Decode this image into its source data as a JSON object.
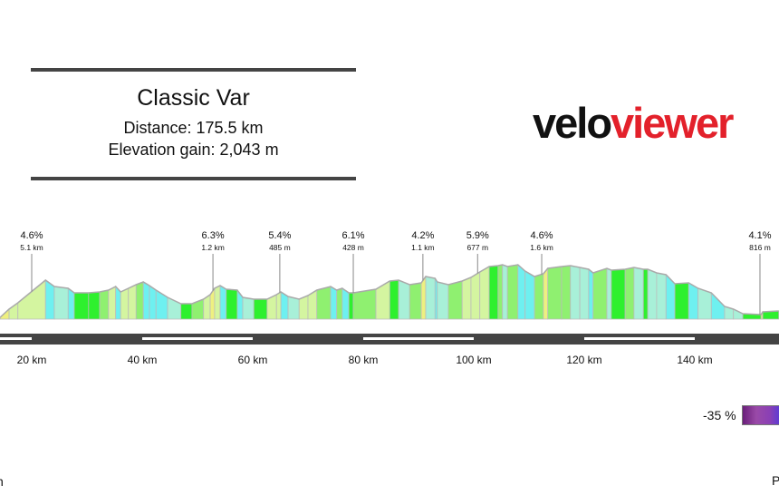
{
  "header": {
    "title": "Classic Var",
    "distance": "Distance: 175.5 km",
    "elevation_gain": "Elevation gain: 2,043 m"
  },
  "logo": {
    "part1": "velo",
    "part2": "viewer",
    "colors": {
      "velo": "#111111",
      "viewer": "#e3212b"
    }
  },
  "legend": {
    "min_label": "-35 %",
    "bottom_left_text": "n",
    "bottom_right_text": "P"
  },
  "chart_data": {
    "type": "area",
    "title": "",
    "xlabel": "",
    "ylabel": "",
    "x_ticks": [
      "20 km",
      "40 km",
      "60 km",
      "80 km",
      "100 km",
      "120 km",
      "140 km"
    ],
    "x_tick_values": [
      20,
      40,
      60,
      80,
      100,
      120,
      140
    ],
    "xlim": [
      14.3,
      155.2
    ],
    "grid": false,
    "profile": {
      "km": [
        14.3,
        15.9,
        17.5,
        22.5,
        24.1,
        26.6,
        27.7,
        30.3,
        32.3,
        33.9,
        35.2,
        36.1,
        37.5,
        38.9,
        40.2,
        41.3,
        42.5,
        44.6,
        47.0,
        49.0,
        51.1,
        52.3,
        53.1,
        54.1,
        55.2,
        57.2,
        58.2,
        60.2,
        62.6,
        64.3,
        65.1,
        66.4,
        68.4,
        70.0,
        71.6,
        74.1,
        75.2,
        76.2,
        77.4,
        78.2,
        82.3,
        84.8,
        86.4,
        88.4,
        90.5,
        91.3,
        93.0,
        93.4,
        95.4,
        97.9,
        99.5,
        101.1,
        102.8,
        104.4,
        105.2,
        106.1,
        108.0,
        109.3,
        111.0,
        112.6,
        113.4,
        115.9,
        117.5,
        119.2,
        120.8,
        121.6,
        124.1,
        124.9,
        127.4,
        129.0,
        130.7,
        131.5,
        133.1,
        134.8,
        136.4,
        138.9,
        140.6,
        143.0,
        145.4,
        147.0,
        148.7,
        152.0,
        152.3,
        155.2
      ],
      "elevation": [
        16,
        88,
        144,
        344,
        288,
        272,
        232,
        232,
        240,
        256,
        288,
        240,
        272,
        304,
        328,
        296,
        256,
        192,
        136,
        136,
        176,
        216,
        272,
        296,
        264,
        256,
        192,
        176,
        176,
        216,
        240,
        200,
        176,
        208,
        256,
        288,
        256,
        272,
        232,
        232,
        264,
        336,
        344,
        304,
        320,
        376,
        360,
        328,
        304,
        336,
        368,
        416,
        464,
        472,
        480,
        464,
        480,
        424,
        376,
        400,
        448,
        464,
        472,
        456,
        440,
        408,
        448,
        432,
        440,
        456,
        440,
        440,
        408,
        392,
        312,
        320,
        272,
        232,
        112,
        88,
        48,
        40,
        64,
        72
      ]
    },
    "climbs": [
      {
        "km": 20.0,
        "gradient": "4.6%",
        "length": "5.1 km"
      },
      {
        "km": 52.8,
        "gradient": "6.3%",
        "length": "1.2 km"
      },
      {
        "km": 64.9,
        "gradient": "5.4%",
        "length": "485 m"
      },
      {
        "km": 78.2,
        "gradient": "6.1%",
        "length": "428 m"
      },
      {
        "km": 90.8,
        "gradient": "4.2%",
        "length": "1.1 km"
      },
      {
        "km": 100.7,
        "gradient": "5.9%",
        "length": "677 m"
      },
      {
        "km": 112.3,
        "gradient": "4.6%",
        "length": "1.6 km"
      },
      {
        "km": 151.8,
        "gradient": "4.1%",
        "length": "816 m"
      }
    ],
    "gradient_colors": {
      "steep_up": "#eef080",
      "up": "#d4f5a0",
      "gentle": "#8ff070",
      "flat": "#2ef02e",
      "down": "#a8f0d8",
      "steep_down": "#6ef0f0"
    }
  }
}
